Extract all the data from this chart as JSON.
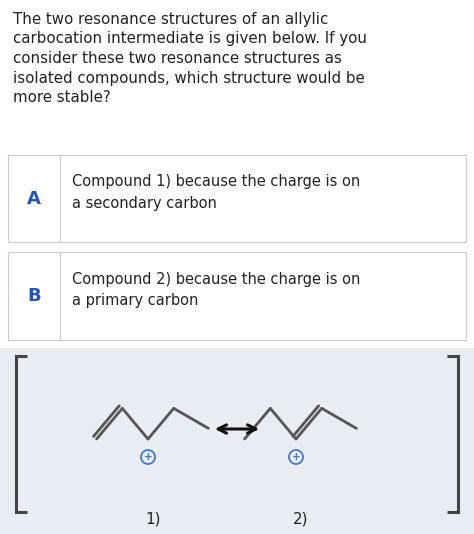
{
  "question_text_lines": [
    "The two resonance structures of an allylic",
    "carbocation intermediate is given below. If you",
    "consider these two resonance structures as",
    "isolated compounds, which structure would be",
    "more stable?"
  ],
  "option_A_label": "A",
  "option_A_text": "Compound 1) because the charge is on\na secondary carbon",
  "option_B_label": "B",
  "option_B_text": "Compound 2) because the charge is on\na primary carbon",
  "label_color": "#2255bb",
  "box_border_color": "#cccccc",
  "background_color": "#ffffff",
  "diagram_bg_color": "#e8edf3",
  "text_color": "#222222",
  "structure_color": "#555555",
  "plus_color": "#4477cc",
  "arrow_color": "#111111",
  "bracket_color": "#444444",
  "label1": "1)",
  "label2": "2)",
  "fig_width": 4.74,
  "fig_height": 5.34,
  "dpi": 100
}
